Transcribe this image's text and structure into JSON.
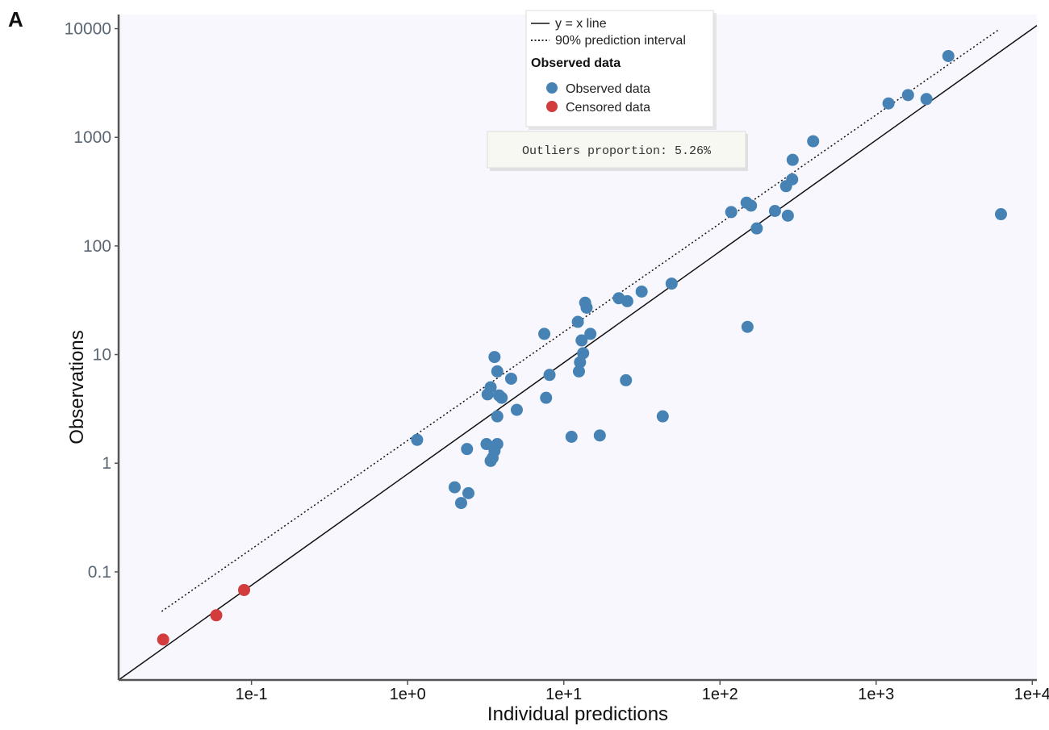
{
  "panel_label": "A",
  "colors": {
    "plot_background": "#f7f7fd",
    "observed": "#4682b4",
    "censored": "#d33c3c",
    "line": "#111111",
    "axis": "#555555"
  },
  "legend": {
    "identity_line": "y = x line",
    "prediction_interval": "90% prediction interval",
    "group_title": "Observed data",
    "observed": "Observed data",
    "censored": "Censored data"
  },
  "annotation": "Outliers proportion: 5.26%",
  "chart_data": {
    "type": "scatter",
    "title": "",
    "xlabel": "Individual predictions",
    "ylabel": "Observations",
    "x_scale": "log",
    "y_scale": "log",
    "xlim": [
      0.0141,
      10700
    ],
    "ylim": [
      0.0101,
      13500
    ],
    "x_ticks": [
      {
        "value": 0.1,
        "label": "1e-1"
      },
      {
        "value": 1,
        "label": "1e+0"
      },
      {
        "value": 10,
        "label": "1e+1"
      },
      {
        "value": 100,
        "label": "1e+2"
      },
      {
        "value": 1000,
        "label": "1e+3"
      },
      {
        "value": 10000,
        "label": "1e+4"
      }
    ],
    "y_ticks": [
      {
        "value": 0.1,
        "label": "0.1"
      },
      {
        "value": 1,
        "label": "1"
      },
      {
        "value": 10,
        "label": "10"
      },
      {
        "value": 100,
        "label": "100"
      },
      {
        "value": 1000,
        "label": "1000"
      },
      {
        "value": 10000,
        "label": "10000"
      }
    ],
    "grid": false,
    "legend_position": "top-center",
    "lines": [
      {
        "name": "y = x line",
        "style": "solid",
        "points": [
          [
            0.0141,
            0.0101
          ],
          [
            10700,
            10700
          ]
        ]
      },
      {
        "name": "90% prediction interval",
        "style": "dotted",
        "points": [
          [
            0.0266,
            0.0432
          ],
          [
            6050,
            9720
          ]
        ]
      }
    ],
    "series": [
      {
        "name": "Observed data",
        "points": [
          [
            1.15,
            1.64
          ],
          [
            2.0,
            0.6
          ],
          [
            2.2,
            0.43
          ],
          [
            2.4,
            1.35
          ],
          [
            2.45,
            0.53
          ],
          [
            3.2,
            1.5
          ],
          [
            3.25,
            4.3
          ],
          [
            3.4,
            1.05
          ],
          [
            3.4,
            5.0
          ],
          [
            3.5,
            1.12
          ],
          [
            3.6,
            1.3
          ],
          [
            3.6,
            9.5
          ],
          [
            3.75,
            1.5
          ],
          [
            3.75,
            7.0
          ],
          [
            3.75,
            2.7
          ],
          [
            3.85,
            4.2
          ],
          [
            4.0,
            4.0
          ],
          [
            4.6,
            6.0
          ],
          [
            5.0,
            3.1
          ],
          [
            7.5,
            15.5
          ],
          [
            7.7,
            4.0
          ],
          [
            8.1,
            6.5
          ],
          [
            11.2,
            1.75
          ],
          [
            12.3,
            20.0
          ],
          [
            12.5,
            7.0
          ],
          [
            12.7,
            8.5
          ],
          [
            13.0,
            13.5
          ],
          [
            13.3,
            10.3
          ],
          [
            13.7,
            30.0
          ],
          [
            14.0,
            27.0
          ],
          [
            14.8,
            15.5
          ],
          [
            17.0,
            1.8
          ],
          [
            22.5,
            33.0
          ],
          [
            25.0,
            5.8
          ],
          [
            25.5,
            31.0
          ],
          [
            31.5,
            38.0
          ],
          [
            43.0,
            2.7
          ],
          [
            49.0,
            45.0
          ],
          [
            118,
            205
          ],
          [
            148,
            250
          ],
          [
            150,
            18.0
          ],
          [
            158,
            235
          ],
          [
            172,
            145
          ],
          [
            225,
            210
          ],
          [
            265,
            355
          ],
          [
            272,
            190
          ],
          [
            290,
            410
          ],
          [
            292,
            620
          ],
          [
            395,
            920
          ],
          [
            1200,
            2050
          ],
          [
            1600,
            2450
          ],
          [
            2100,
            2250
          ],
          [
            2900,
            5600
          ],
          [
            6300,
            196
          ]
        ]
      },
      {
        "name": "Censored data",
        "points": [
          [
            0.0272,
            0.0238
          ],
          [
            0.0595,
            0.0398
          ],
          [
            0.0897,
            0.068
          ]
        ]
      }
    ]
  }
}
